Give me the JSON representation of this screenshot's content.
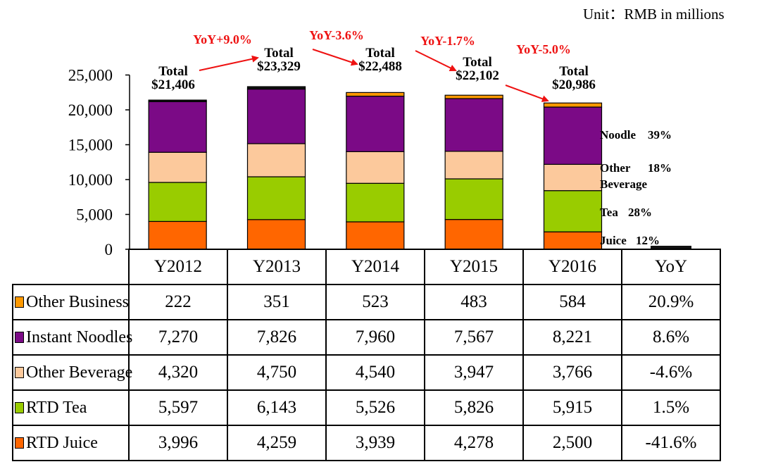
{
  "unit_label": "Unit：RMB in millions",
  "chart_data": {
    "type": "bar",
    "stacked": true,
    "categories": [
      "Y2012",
      "Y2013",
      "Y2014",
      "Y2015",
      "Y2016"
    ],
    "yoy_header": "YoY",
    "ylim": [
      0,
      25000
    ],
    "yticks": [
      "0",
      "5,000",
      "10,000",
      "15,000",
      "20,000",
      "25,000"
    ],
    "series": [
      {
        "name": "RTD Juice",
        "color": "#ff6600",
        "values": [
          3996,
          4259,
          3939,
          4278,
          2500
        ],
        "display": [
          "3,996",
          "4,259",
          "3,939",
          "4,278",
          "2,500"
        ],
        "yoy": "-41.6%"
      },
      {
        "name": "RTD Tea",
        "color": "#99cc00",
        "values": [
          5597,
          6143,
          5526,
          5826,
          5915
        ],
        "display": [
          "5,597",
          "6,143",
          "5,526",
          "5,826",
          "5,915"
        ],
        "yoy": "1.5%"
      },
      {
        "name": "Other Beverage",
        "color": "#fcc99c",
        "values": [
          4320,
          4750,
          4540,
          3947,
          3766
        ],
        "display": [
          "4,320",
          "4,750",
          "4,540",
          "3,947",
          "3,766"
        ],
        "yoy": "-4.6%"
      },
      {
        "name": "Instant Noodles",
        "color": "#7b0a86",
        "values": [
          7270,
          7826,
          7960,
          7567,
          8221
        ],
        "display": [
          "7,270",
          "7,826",
          "7,960",
          "7,567",
          "8,221"
        ],
        "yoy": "8.6%"
      },
      {
        "name": "Other Business",
        "color": "#ff9900",
        "values": [
          222,
          351,
          523,
          483,
          584
        ],
        "display": [
          "222",
          "351",
          "523",
          "483",
          "584"
        ],
        "yoy": "20.9%"
      }
    ],
    "totals": [
      {
        "label": "Total",
        "value": "$21,406"
      },
      {
        "label": "Total",
        "value": "$23,329"
      },
      {
        "label": "Total",
        "value": "$22,488"
      },
      {
        "label": "Total",
        "value": "$22,102"
      },
      {
        "label": "Total",
        "value": "$20,986"
      }
    ],
    "yoy_annotations": [
      "YoY+9.0%",
      "YoY-3.6%",
      "YoY-1.7%",
      "YoY-5.0%"
    ],
    "share_labels": [
      {
        "name": "Noodle",
        "pct": "39%"
      },
      {
        "name": "Other",
        "pct": "18%",
        "second_line": "Beverage"
      },
      {
        "name": "Tea",
        "pct": "28%"
      },
      {
        "name": "Juice",
        "pct": "12%"
      }
    ],
    "table_order": [
      "Other Business",
      "Instant Noodles",
      "Other Beverage",
      "RTD Tea",
      "RTD Juice"
    ]
  }
}
